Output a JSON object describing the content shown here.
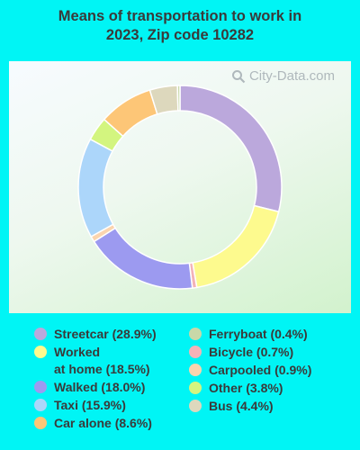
{
  "header": {
    "title_line1": "Means of transportation to work in",
    "title_line2": "2023, Zip code 10282"
  },
  "watermark": "City-Data.com",
  "chart_data": {
    "type": "pie",
    "donut": true,
    "slices": [
      {
        "label": "Streetcar",
        "value": 28.9,
        "color": "#bba8dc",
        "legend": "Streetcar (28.9%)"
      },
      {
        "label": "Worked at home",
        "value": 18.5,
        "color": "#fdfa8e",
        "legend": "Worked\nat home (18.5%)"
      },
      {
        "label": "Bicycle",
        "value": 0.7,
        "color": "#f3b3b8",
        "legend": "Bicycle (0.7%)"
      },
      {
        "label": "Walked",
        "value": 18.0,
        "color": "#9c9af0",
        "legend": "Walked (18.0%)"
      },
      {
        "label": "Carpooled",
        "value": 0.9,
        "color": "#fbd4ae",
        "legend": "Carpooled (0.9%)"
      },
      {
        "label": "Taxi",
        "value": 15.9,
        "color": "#acd6fa",
        "legend": "Taxi (15.9%)"
      },
      {
        "label": "Other",
        "value": 3.8,
        "color": "#d3f57f",
        "legend": "Other (3.8%)"
      },
      {
        "label": "Car alone",
        "value": 8.6,
        "color": "#fdc677",
        "legend": "Car alone (8.6%)"
      },
      {
        "label": "Bus",
        "value": 4.4,
        "color": "#ddd8bd",
        "legend": "Bus (4.4%)"
      },
      {
        "label": "Ferryboat",
        "value": 0.4,
        "color": "#c8d8a8",
        "legend": "Ferryboat (0.4%)"
      }
    ],
    "legend_left": [
      "Streetcar",
      "Worked at home",
      "Walked",
      "Taxi",
      "Car alone"
    ],
    "legend_right": [
      "Ferryboat",
      "Bicycle",
      "Carpooled",
      "Other",
      "Bus"
    ]
  }
}
